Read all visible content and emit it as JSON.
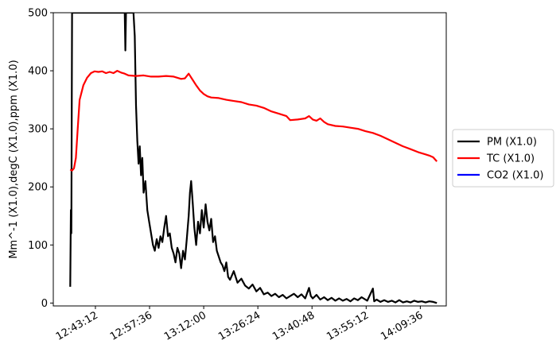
{
  "chart_data": {
    "type": "line",
    "title": "",
    "xlabel": "",
    "ylabel": "Mm^-1 (X1.0),degC (X1.0),ppm (X1.0)",
    "x_ticks": [
      "12:43:12",
      "12:57:36",
      "13:12:00",
      "13:26:24",
      "13:40:48",
      "13:55:12",
      "14:09:36"
    ],
    "y_ticks": [
      "0",
      "100",
      "200",
      "300",
      "400",
      "500"
    ],
    "ylim": [
      -5,
      500
    ],
    "xlim": [
      "12:32:00",
      "14:16:30"
    ],
    "grid": false,
    "legend_position": "outside-right",
    "series": [
      {
        "name": "PM (X1.0)",
        "color": "#000000",
        "points": [
          [
            "12:36:30",
            28
          ],
          [
            "12:36:40",
            160
          ],
          [
            "12:36:48",
            120
          ],
          [
            "12:37:00",
            500
          ],
          [
            "12:38:00",
            500
          ],
          [
            "12:51:00",
            500
          ],
          [
            "12:51:10",
            435
          ],
          [
            "12:51:20",
            500
          ],
          [
            "12:53:20",
            500
          ],
          [
            "12:53:40",
            460
          ],
          [
            "12:54:00",
            340
          ],
          [
            "12:54:20",
            280
          ],
          [
            "12:54:40",
            240
          ],
          [
            "12:55:00",
            270
          ],
          [
            "12:55:20",
            220
          ],
          [
            "12:55:40",
            250
          ],
          [
            "12:56:00",
            190
          ],
          [
            "12:56:30",
            210
          ],
          [
            "12:57:00",
            160
          ],
          [
            "12:57:30",
            140
          ],
          [
            "12:58:00",
            120
          ],
          [
            "12:58:30",
            100
          ],
          [
            "12:59:00",
            90
          ],
          [
            "12:59:30",
            110
          ],
          [
            "13:00:00",
            95
          ],
          [
            "13:00:30",
            115
          ],
          [
            "13:01:00",
            105
          ],
          [
            "13:01:30",
            130
          ],
          [
            "13:02:00",
            150
          ],
          [
            "13:02:30",
            115
          ],
          [
            "13:03:00",
            120
          ],
          [
            "13:03:30",
            95
          ],
          [
            "13:04:00",
            85
          ],
          [
            "13:04:30",
            70
          ],
          [
            "13:05:00",
            95
          ],
          [
            "13:05:30",
            85
          ],
          [
            "13:06:00",
            60
          ],
          [
            "13:06:30",
            90
          ],
          [
            "13:07:00",
            75
          ],
          [
            "13:07:30",
            110
          ],
          [
            "13:08:00",
            150
          ],
          [
            "13:08:20",
            190
          ],
          [
            "13:08:40",
            210
          ],
          [
            "13:09:00",
            180
          ],
          [
            "13:09:30",
            130
          ],
          [
            "13:10:00",
            100
          ],
          [
            "13:10:30",
            140
          ],
          [
            "13:11:00",
            120
          ],
          [
            "13:11:30",
            160
          ],
          [
            "13:12:00",
            130
          ],
          [
            "13:12:30",
            170
          ],
          [
            "13:13:00",
            140
          ],
          [
            "13:13:30",
            125
          ],
          [
            "13:14:00",
            145
          ],
          [
            "13:14:30",
            105
          ],
          [
            "13:15:00",
            115
          ],
          [
            "13:15:30",
            90
          ],
          [
            "13:16:00",
            80
          ],
          [
            "13:16:30",
            70
          ],
          [
            "13:17:00",
            65
          ],
          [
            "13:17:30",
            55
          ],
          [
            "13:18:00",
            70
          ],
          [
            "13:18:30",
            45
          ],
          [
            "13:19:00",
            40
          ],
          [
            "13:20:00",
            55
          ],
          [
            "13:21:00",
            35
          ],
          [
            "13:22:00",
            42
          ],
          [
            "13:23:00",
            30
          ],
          [
            "13:24:00",
            25
          ],
          [
            "13:25:00",
            32
          ],
          [
            "13:26:00",
            20
          ],
          [
            "13:27:00",
            26
          ],
          [
            "13:28:00",
            15
          ],
          [
            "13:29:00",
            18
          ],
          [
            "13:30:00",
            12
          ],
          [
            "13:31:00",
            16
          ],
          [
            "13:32:00",
            10
          ],
          [
            "13:33:00",
            14
          ],
          [
            "13:34:00",
            8
          ],
          [
            "13:35:00",
            12
          ],
          [
            "13:36:00",
            16
          ],
          [
            "13:37:00",
            10
          ],
          [
            "13:38:00",
            15
          ],
          [
            "13:39:00",
            8
          ],
          [
            "13:40:00",
            26
          ],
          [
            "13:40:30",
            12
          ],
          [
            "13:41:00",
            8
          ],
          [
            "13:42:00",
            14
          ],
          [
            "13:43:00",
            6
          ],
          [
            "13:44:00",
            10
          ],
          [
            "13:45:00",
            5
          ],
          [
            "13:46:00",
            9
          ],
          [
            "13:47:00",
            4
          ],
          [
            "13:48:00",
            8
          ],
          [
            "13:49:00",
            4
          ],
          [
            "13:50:00",
            7
          ],
          [
            "13:51:00",
            3
          ],
          [
            "13:52:00",
            8
          ],
          [
            "13:53:00",
            5
          ],
          [
            "13:54:00",
            10
          ],
          [
            "13:55:30",
            4
          ],
          [
            "13:57:00",
            25
          ],
          [
            "13:57:20",
            3
          ],
          [
            "13:58:00",
            6
          ],
          [
            "13:59:00",
            2
          ],
          [
            "14:00:00",
            5
          ],
          [
            "14:01:00",
            2
          ],
          [
            "14:02:00",
            4
          ],
          [
            "14:03:00",
            1
          ],
          [
            "14:04:00",
            5
          ],
          [
            "14:05:00",
            1
          ],
          [
            "14:06:00",
            3
          ],
          [
            "14:07:00",
            1
          ],
          [
            "14:08:00",
            4
          ],
          [
            "14:09:00",
            2
          ],
          [
            "14:10:00",
            3
          ],
          [
            "14:11:00",
            1
          ],
          [
            "14:12:00",
            3
          ],
          [
            "14:13:00",
            2
          ],
          [
            "14:14:00",
            0
          ]
        ]
      },
      {
        "name": "TC (X1.0)",
        "color": "#ff0000",
        "points": [
          [
            "12:36:30",
            230
          ],
          [
            "12:37:00",
            228
          ],
          [
            "12:37:30",
            232
          ],
          [
            "12:38:00",
            250
          ],
          [
            "12:38:30",
            300
          ],
          [
            "12:39:00",
            350
          ],
          [
            "12:40:00",
            375
          ],
          [
            "12:41:00",
            388
          ],
          [
            "12:42:00",
            396
          ],
          [
            "12:43:00",
            399
          ],
          [
            "12:44:00",
            398
          ],
          [
            "12:45:00",
            399
          ],
          [
            "12:46:00",
            396
          ],
          [
            "12:47:00",
            398
          ],
          [
            "12:48:00",
            396
          ],
          [
            "12:49:00",
            400
          ],
          [
            "12:50:00",
            397
          ],
          [
            "12:51:00",
            395
          ],
          [
            "12:52:00",
            392
          ],
          [
            "12:54:00",
            391
          ],
          [
            "12:56:00",
            392
          ],
          [
            "12:58:00",
            390
          ],
          [
            "13:00:00",
            390
          ],
          [
            "13:02:00",
            391
          ],
          [
            "13:04:00",
            390
          ],
          [
            "13:06:00",
            386
          ],
          [
            "13:07:00",
            387
          ],
          [
            "13:08:00",
            395
          ],
          [
            "13:09:00",
            385
          ],
          [
            "13:10:00",
            375
          ],
          [
            "13:11:00",
            366
          ],
          [
            "13:12:00",
            360
          ],
          [
            "13:13:00",
            356
          ],
          [
            "13:14:00",
            354
          ],
          [
            "13:16:00",
            353
          ],
          [
            "13:18:00",
            350
          ],
          [
            "13:20:00",
            348
          ],
          [
            "13:22:00",
            346
          ],
          [
            "13:24:00",
            342
          ],
          [
            "13:26:00",
            340
          ],
          [
            "13:28:00",
            336
          ],
          [
            "13:30:00",
            330
          ],
          [
            "13:32:00",
            326
          ],
          [
            "13:34:00",
            322
          ],
          [
            "13:35:00",
            315
          ],
          [
            "13:37:00",
            316
          ],
          [
            "13:39:00",
            318
          ],
          [
            "13:40:00",
            322
          ],
          [
            "13:41:00",
            316
          ],
          [
            "13:42:00",
            314
          ],
          [
            "13:43:00",
            318
          ],
          [
            "13:44:00",
            312
          ],
          [
            "13:45:00",
            308
          ],
          [
            "13:47:00",
            305
          ],
          [
            "13:49:00",
            304
          ],
          [
            "13:51:00",
            302
          ],
          [
            "13:53:00",
            300
          ],
          [
            "13:55:00",
            296
          ],
          [
            "13:57:00",
            293
          ],
          [
            "13:59:00",
            288
          ],
          [
            "14:01:00",
            282
          ],
          [
            "14:03:00",
            276
          ],
          [
            "14:05:00",
            270
          ],
          [
            "14:07:00",
            265
          ],
          [
            "14:09:00",
            260
          ],
          [
            "14:11:00",
            256
          ],
          [
            "14:12:00",
            254
          ],
          [
            "14:13:00",
            251
          ],
          [
            "14:14:00",
            244
          ]
        ]
      },
      {
        "name": "CO2 (X1.0)",
        "color": "#0000ff",
        "points": []
      }
    ]
  }
}
